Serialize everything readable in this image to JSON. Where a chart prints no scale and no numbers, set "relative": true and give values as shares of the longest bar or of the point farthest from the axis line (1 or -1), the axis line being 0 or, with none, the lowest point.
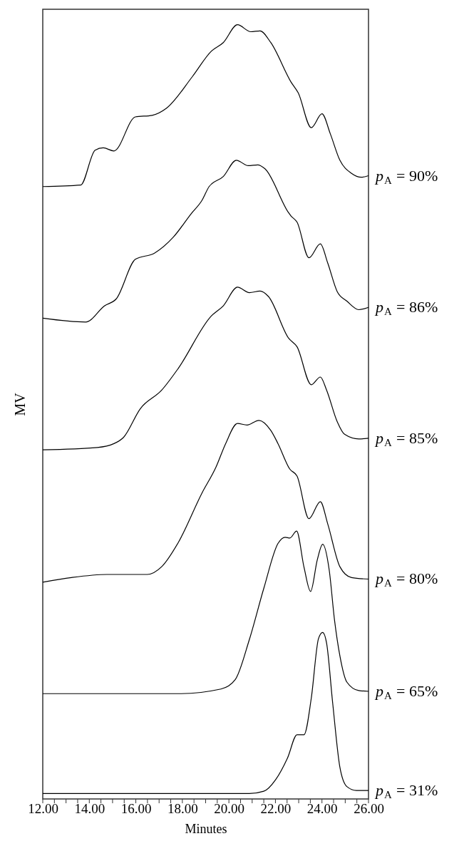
{
  "chart_data": {
    "type": "line",
    "xlabel": "Minutes",
    "ylabel": "MV",
    "relative": true,
    "xlim": [
      12,
      26
    ],
    "tick_labels": "x",
    "grid": false,
    "xticks": [
      {
        "value": 12,
        "label": "12.00"
      },
      {
        "value": 12.5,
        "label": null
      },
      {
        "value": 13,
        "label": null
      },
      {
        "value": 13.5,
        "label": null
      },
      {
        "value": 14,
        "label": "14.00"
      },
      {
        "value": 14.5,
        "label": null
      },
      {
        "value": 15,
        "label": null
      },
      {
        "value": 15.5,
        "label": null
      },
      {
        "value": 16,
        "label": "16.00"
      },
      {
        "value": 16.5,
        "label": null
      },
      {
        "value": 17,
        "label": null
      },
      {
        "value": 17.5,
        "label": null
      },
      {
        "value": 18,
        "label": "18.00"
      },
      {
        "value": 18.5,
        "label": null
      },
      {
        "value": 19,
        "label": null
      },
      {
        "value": 19.5,
        "label": null
      },
      {
        "value": 20,
        "label": "20.00"
      },
      {
        "value": 20.5,
        "label": null
      },
      {
        "value": 21,
        "label": null
      },
      {
        "value": 21.5,
        "label": null
      },
      {
        "value": 22,
        "label": "22.00"
      },
      {
        "value": 22.5,
        "label": null
      },
      {
        "value": 23,
        "label": null
      },
      {
        "value": 23.5,
        "label": null
      },
      {
        "value": 24,
        "label": "24.00"
      },
      {
        "value": 24.5,
        "label": null
      },
      {
        "value": 25,
        "label": null
      },
      {
        "value": 25.5,
        "label": null
      },
      {
        "value": 26,
        "label": "26.00"
      }
    ],
    "series": [
      {
        "name": "p$_{A}$ = 90%",
        "color": "#000000",
        "x": [
          12.0,
          13.63,
          14.25,
          14.6,
          15.06,
          15.98,
          16.7,
          17.31,
          18.43,
          19.25,
          19.76,
          20.37,
          20.94,
          21.34,
          21.8,
          22.67,
          22.98,
          23.54,
          24.0,
          24.36,
          24.77,
          25.27,
          25.69,
          26.0
        ],
        "values": [
          0.791,
          0.793,
          0.838,
          0.841,
          0.837,
          0.881,
          0.883,
          0.892,
          0.933,
          0.966,
          0.977,
          1.0,
          0.991,
          0.992,
          0.977,
          0.926,
          0.912,
          0.867,
          0.885,
          0.859,
          0.825,
          0.808,
          0.803,
          0.805
        ]
      },
      {
        "name": "p$_{A}$ = 86%",
        "color": "#000000",
        "x": [
          12.0,
          13.84,
          14.66,
          15.16,
          15.98,
          16.8,
          17.62,
          18.38,
          18.84,
          19.15,
          19.76,
          20.32,
          20.83,
          21.24,
          21.55,
          22.57,
          22.67,
          22.93,
          23.44,
          23.93,
          24.25,
          24.66,
          25.07,
          25.58,
          26.0
        ],
        "values": [
          0.621,
          0.616,
          0.637,
          0.646,
          0.697,
          0.705,
          0.726,
          0.756,
          0.773,
          0.791,
          0.804,
          0.825,
          0.818,
          0.819,
          0.814,
          0.757,
          0.753,
          0.745,
          0.699,
          0.717,
          0.692,
          0.655,
          0.643,
          0.632,
          0.635
        ]
      },
      {
        "name": "p$_{A}$ = 85%",
        "color": "#000000",
        "x": [
          12.0,
          14.35,
          15.06,
          15.47,
          16.19,
          17.11,
          17.82,
          19.25,
          19.76,
          20.37,
          20.88,
          21.34,
          21.7,
          22.57,
          22.93,
          23.54,
          23.93,
          24.2,
          24.66,
          24.97,
          25.58,
          26.0
        ],
        "values": [
          0.451,
          0.454,
          0.459,
          0.467,
          0.504,
          0.528,
          0.556,
          0.624,
          0.637,
          0.661,
          0.654,
          0.656,
          0.649,
          0.595,
          0.584,
          0.535,
          0.545,
          0.528,
          0.487,
          0.471,
          0.465,
          0.466
        ]
      },
      {
        "name": "p$_{A}$ = 80%",
        "color": "#000000",
        "x": [
          12.0,
          13.23,
          14.76,
          16.49,
          17.11,
          17.82,
          18.84,
          19.45,
          19.86,
          20.37,
          20.78,
          21.29,
          21.8,
          22.11,
          22.62,
          22.93,
          23.44,
          23.93,
          24.25,
          24.77,
          25.27,
          26.0
        ],
        "values": [
          0.28,
          0.286,
          0.29,
          0.29,
          0.3,
          0.331,
          0.395,
          0.429,
          0.459,
          0.485,
          0.483,
          0.489,
          0.476,
          0.459,
          0.426,
          0.417,
          0.362,
          0.384,
          0.355,
          0.3,
          0.286,
          0.284
        ]
      },
      {
        "name": "p$_{A}$ = 65%",
        "color": "#000000",
        "x": [
          12.0,
          17.82,
          19.66,
          20.27,
          20.88,
          21.5,
          22.11,
          22.42,
          22.62,
          22.91,
          23.23,
          23.51,
          23.8,
          24.03,
          24.31,
          24.54,
          24.77,
          25.07,
          25.58,
          26.0
        ],
        "values": [
          0.136,
          0.136,
          0.142,
          0.154,
          0.206,
          0.272,
          0.33,
          0.338,
          0.337,
          0.346,
          0.299,
          0.268,
          0.309,
          0.329,
          0.296,
          0.231,
          0.185,
          0.151,
          0.14,
          0.139
        ]
      },
      {
        "name": "p$_{A}$ = 31%",
        "color": "#000000",
        "x": [
          12.0,
          15.78,
          20.88,
          21.5,
          22.01,
          22.52,
          22.93,
          23.23,
          23.54,
          23.85,
          24.03,
          24.2,
          24.46,
          24.77,
          25.07,
          25.48,
          26.0
        ],
        "values": [
          0.007,
          0.007,
          0.007,
          0.01,
          0.025,
          0.053,
          0.083,
          0.083,
          0.13,
          0.207,
          0.215,
          0.201,
          0.124,
          0.041,
          0.016,
          0.011,
          0.011
        ]
      }
    ]
  }
}
